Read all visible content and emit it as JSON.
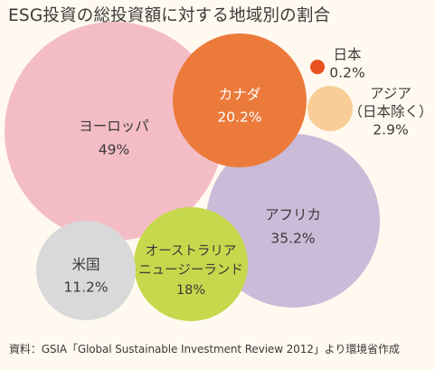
{
  "title": "ESG投資の総投資額に対する地域別の割合",
  "source": "資料：GSIA「Global Sustainable Investment Review 2012」より環境省作成",
  "colors": {
    "background": "#FFF9EF",
    "text": "#3A3A3A",
    "europe": "#F4BDC6",
    "canada": "#EB7A3B",
    "japan": "#E9511F",
    "asia": "#F8CE96",
    "africa": "#CBBAD8",
    "usa": "#D9D9D9",
    "oceania": "#C6D84B"
  },
  "chart_data": {
    "type": "bubble",
    "title": "ESG投資の総投資額に対する地域別の割合",
    "unit": "%",
    "series": [
      {
        "key": "europe",
        "label_lines": [
          "ヨーロッパ"
        ],
        "value": 49,
        "value_label": "49%",
        "color": "#F4BDC6"
      },
      {
        "key": "canada",
        "label_lines": [
          "カナダ"
        ],
        "value": 20.2,
        "value_label": "20.2%",
        "color": "#EB7A3B"
      },
      {
        "key": "japan",
        "label_lines": [
          "日本"
        ],
        "value": 0.2,
        "value_label": "0.2%",
        "color": "#E9511F"
      },
      {
        "key": "asia",
        "label_lines": [
          "アジア",
          "（日本除く）"
        ],
        "value": 2.9,
        "value_label": "2.9%",
        "color": "#F8CE96"
      },
      {
        "key": "africa",
        "label_lines": [
          "アフリカ"
        ],
        "value": 35.2,
        "value_label": "35.2%",
        "color": "#CBBAD8"
      },
      {
        "key": "usa",
        "label_lines": [
          "米国"
        ],
        "value": 11.2,
        "value_label": "11.2%",
        "color": "#D9D9D9"
      },
      {
        "key": "oceania",
        "label_lines": [
          "オーストラリア",
          "ニュージーランド"
        ],
        "value": 18,
        "value_label": "18%",
        "color": "#C6D84B"
      }
    ]
  }
}
